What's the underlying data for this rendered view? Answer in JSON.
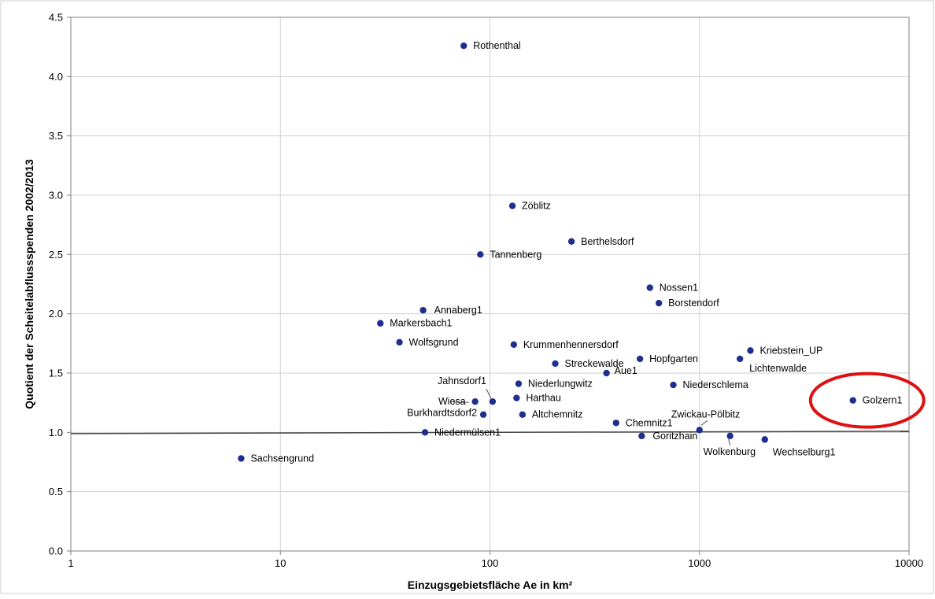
{
  "chart_data": {
    "type": "scatter",
    "title": "",
    "xlabel": "Einzugsgebietsfläche Ae in km²",
    "ylabel": "Quotient der Scheitelabflussspenden 2002/2013",
    "x_scale": "log",
    "xlim": [
      1,
      10000
    ],
    "ylim": [
      0,
      4.5
    ],
    "x_ticks": [
      "1",
      "10",
      "100",
      "1000",
      "10000"
    ],
    "y_ticks": [
      "0.0",
      "0.5",
      "1.0",
      "1.5",
      "2.0",
      "2.5",
      "3.0",
      "3.5",
      "4.0",
      "4.5"
    ],
    "grid": true,
    "legend": "none",
    "point_color": "#1f2f8f",
    "reference_line": {
      "x": [
        1,
        10000
      ],
      "y": [
        0.99,
        1.01
      ],
      "color": "#444444"
    },
    "highlight": {
      "label": "Golzern1",
      "shape": "ellipse",
      "color": "#e01010"
    },
    "points": [
      {
        "label": "Rothenthal",
        "x": 75,
        "y": 4.26
      },
      {
        "label": "Zöblitz",
        "x": 128,
        "y": 2.91
      },
      {
        "label": "Berthelsdorf",
        "x": 245,
        "y": 2.61
      },
      {
        "label": "Tannenberg",
        "x": 90,
        "y": 2.5
      },
      {
        "label": "Nossen1",
        "x": 580,
        "y": 2.22
      },
      {
        "label": "Borstendorf",
        "x": 640,
        "y": 2.09
      },
      {
        "label": "Annaberg1",
        "x": 48,
        "y": 2.03
      },
      {
        "label": "Markersbach1",
        "x": 30,
        "y": 1.92
      },
      {
        "label": "Wolfsgrund",
        "x": 37,
        "y": 1.76
      },
      {
        "label": "Krummenhennersdorf",
        "x": 130,
        "y": 1.74
      },
      {
        "label": "Kriebstein_UP",
        "x": 1750,
        "y": 1.69
      },
      {
        "label": "Hopfgarten",
        "x": 520,
        "y": 1.62
      },
      {
        "label": "Lichtenwalde",
        "x": 1560,
        "y": 1.62
      },
      {
        "label": "Streckewalde",
        "x": 205,
        "y": 1.58
      },
      {
        "label": "Aue1",
        "x": 360,
        "y": 1.5
      },
      {
        "label": "Jahnsdorf1",
        "x": 103,
        "y": 1.26
      },
      {
        "label": "Niederlungwitz",
        "x": 137,
        "y": 1.41
      },
      {
        "label": "Niederschlema",
        "x": 750,
        "y": 1.4
      },
      {
        "label": "Harthau",
        "x": 134,
        "y": 1.29
      },
      {
        "label": "Wiesa",
        "x": 85,
        "y": 1.26
      },
      {
        "label": "Golzern1",
        "x": 5400,
        "y": 1.27
      },
      {
        "label": "Burkhardtsdorf2",
        "x": 93,
        "y": 1.15
      },
      {
        "label": "Altchemnitz",
        "x": 143,
        "y": 1.15
      },
      {
        "label": "Zwickau-Pölbitz",
        "x": 1000,
        "y": 1.02
      },
      {
        "label": "Chemnitz1",
        "x": 400,
        "y": 1.08
      },
      {
        "label": "Niedermülsen1",
        "x": 49,
        "y": 1.0
      },
      {
        "label": "Goritzhain",
        "x": 530,
        "y": 0.97
      },
      {
        "label": "Wolkenburg",
        "x": 1400,
        "y": 0.97
      },
      {
        "label": "Wechselburg1",
        "x": 2050,
        "y": 0.94
      },
      {
        "label": "Sachsengrund",
        "x": 6.5,
        "y": 0.78
      }
    ]
  }
}
